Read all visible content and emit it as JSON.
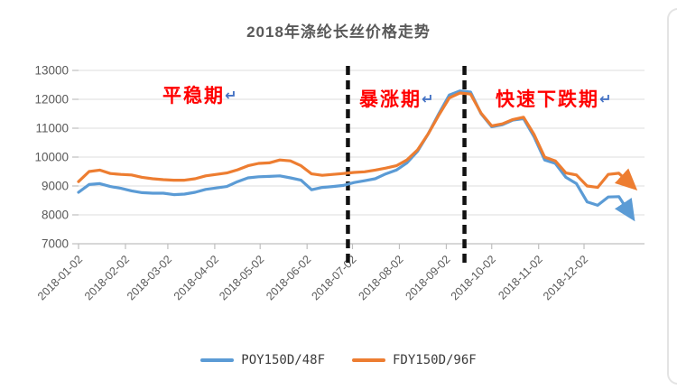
{
  "title": "2018年涤纶长丝价格走势",
  "annotations": {
    "return_mark": "↵",
    "color": "#FF0000",
    "return_color": "#4472C4",
    "items": [
      {
        "label": "平稳期"
      },
      {
        "label": "暴涨期"
      },
      {
        "label": "快速下跌期"
      }
    ]
  },
  "chart_data": {
    "type": "line",
    "title": "2018年涤纶长丝价格走势",
    "xlabel": "",
    "ylabel": "",
    "ylim": [
      7000,
      13000
    ],
    "yticks": [
      7000,
      8000,
      9000,
      10000,
      11000,
      12000,
      13000
    ],
    "xticks": [
      "2018-01-02",
      "2018-02-02",
      "2018-03-02",
      "2018-04-02",
      "2018-05-02",
      "2018-06-02",
      "2018-07-02",
      "2018-08-02",
      "2018-09-02",
      "2018-10-02",
      "2018-11-02",
      "2018-12-02"
    ],
    "grid": "horizontal",
    "legend_position": "bottom",
    "phase_dividers": [
      {
        "date": "2018-06-29"
      },
      {
        "date": "2018-09-14"
      }
    ],
    "x": [
      "2018-01-02",
      "2018-01-09",
      "2018-01-16",
      "2018-01-23",
      "2018-01-30",
      "2018-02-06",
      "2018-02-13",
      "2018-02-20",
      "2018-02-27",
      "2018-03-06",
      "2018-03-13",
      "2018-03-20",
      "2018-03-27",
      "2018-04-03",
      "2018-04-10",
      "2018-04-17",
      "2018-04-24",
      "2018-05-01",
      "2018-05-08",
      "2018-05-15",
      "2018-05-22",
      "2018-05-29",
      "2018-06-05",
      "2018-06-12",
      "2018-06-19",
      "2018-06-26",
      "2018-07-03",
      "2018-07-10",
      "2018-07-17",
      "2018-07-24",
      "2018-07-31",
      "2018-08-07",
      "2018-08-14",
      "2018-08-21",
      "2018-08-28",
      "2018-09-04",
      "2018-09-11",
      "2018-09-18",
      "2018-09-25",
      "2018-10-02",
      "2018-10-09",
      "2018-10-16",
      "2018-10-23",
      "2018-10-30",
      "2018-11-06",
      "2018-11-13",
      "2018-11-20",
      "2018-11-27",
      "2018-12-04",
      "2018-12-11",
      "2018-12-18",
      "2018-12-25",
      "2018-12-31"
    ],
    "series": [
      {
        "name": "POY150D/48F",
        "color": "#5B9BD5",
        "values": [
          8780,
          9050,
          9080,
          8980,
          8920,
          8830,
          8770,
          8750,
          8750,
          8700,
          8720,
          8780,
          8880,
          8930,
          8980,
          9150,
          9280,
          9320,
          9330,
          9350,
          9280,
          9200,
          8870,
          8950,
          8980,
          9020,
          9120,
          9180,
          9250,
          9420,
          9550,
          9800,
          10200,
          10800,
          11500,
          12150,
          12290,
          12250,
          11500,
          11050,
          11120,
          11280,
          11330,
          10700,
          9900,
          9780,
          9300,
          9080,
          8450,
          8330,
          8620,
          8630,
          8150
        ]
      },
      {
        "name": "FDY150D/96F",
        "color": "#ED7D31",
        "values": [
          9150,
          9500,
          9550,
          9430,
          9400,
          9380,
          9300,
          9250,
          9220,
          9200,
          9200,
          9250,
          9350,
          9400,
          9450,
          9560,
          9700,
          9780,
          9800,
          9900,
          9870,
          9700,
          9420,
          9370,
          9400,
          9430,
          9470,
          9490,
          9550,
          9620,
          9700,
          9900,
          10250,
          10800,
          11450,
          12050,
          12220,
          12180,
          11520,
          11080,
          11150,
          11300,
          11380,
          10780,
          10000,
          9870,
          9450,
          9380,
          9000,
          8950,
          9400,
          9440,
          9150
        ]
      }
    ],
    "colors": {
      "axis": "#BFBFBF",
      "grid": "#DCDCDC",
      "tick_text": "#595959",
      "divider": "#111111"
    }
  }
}
